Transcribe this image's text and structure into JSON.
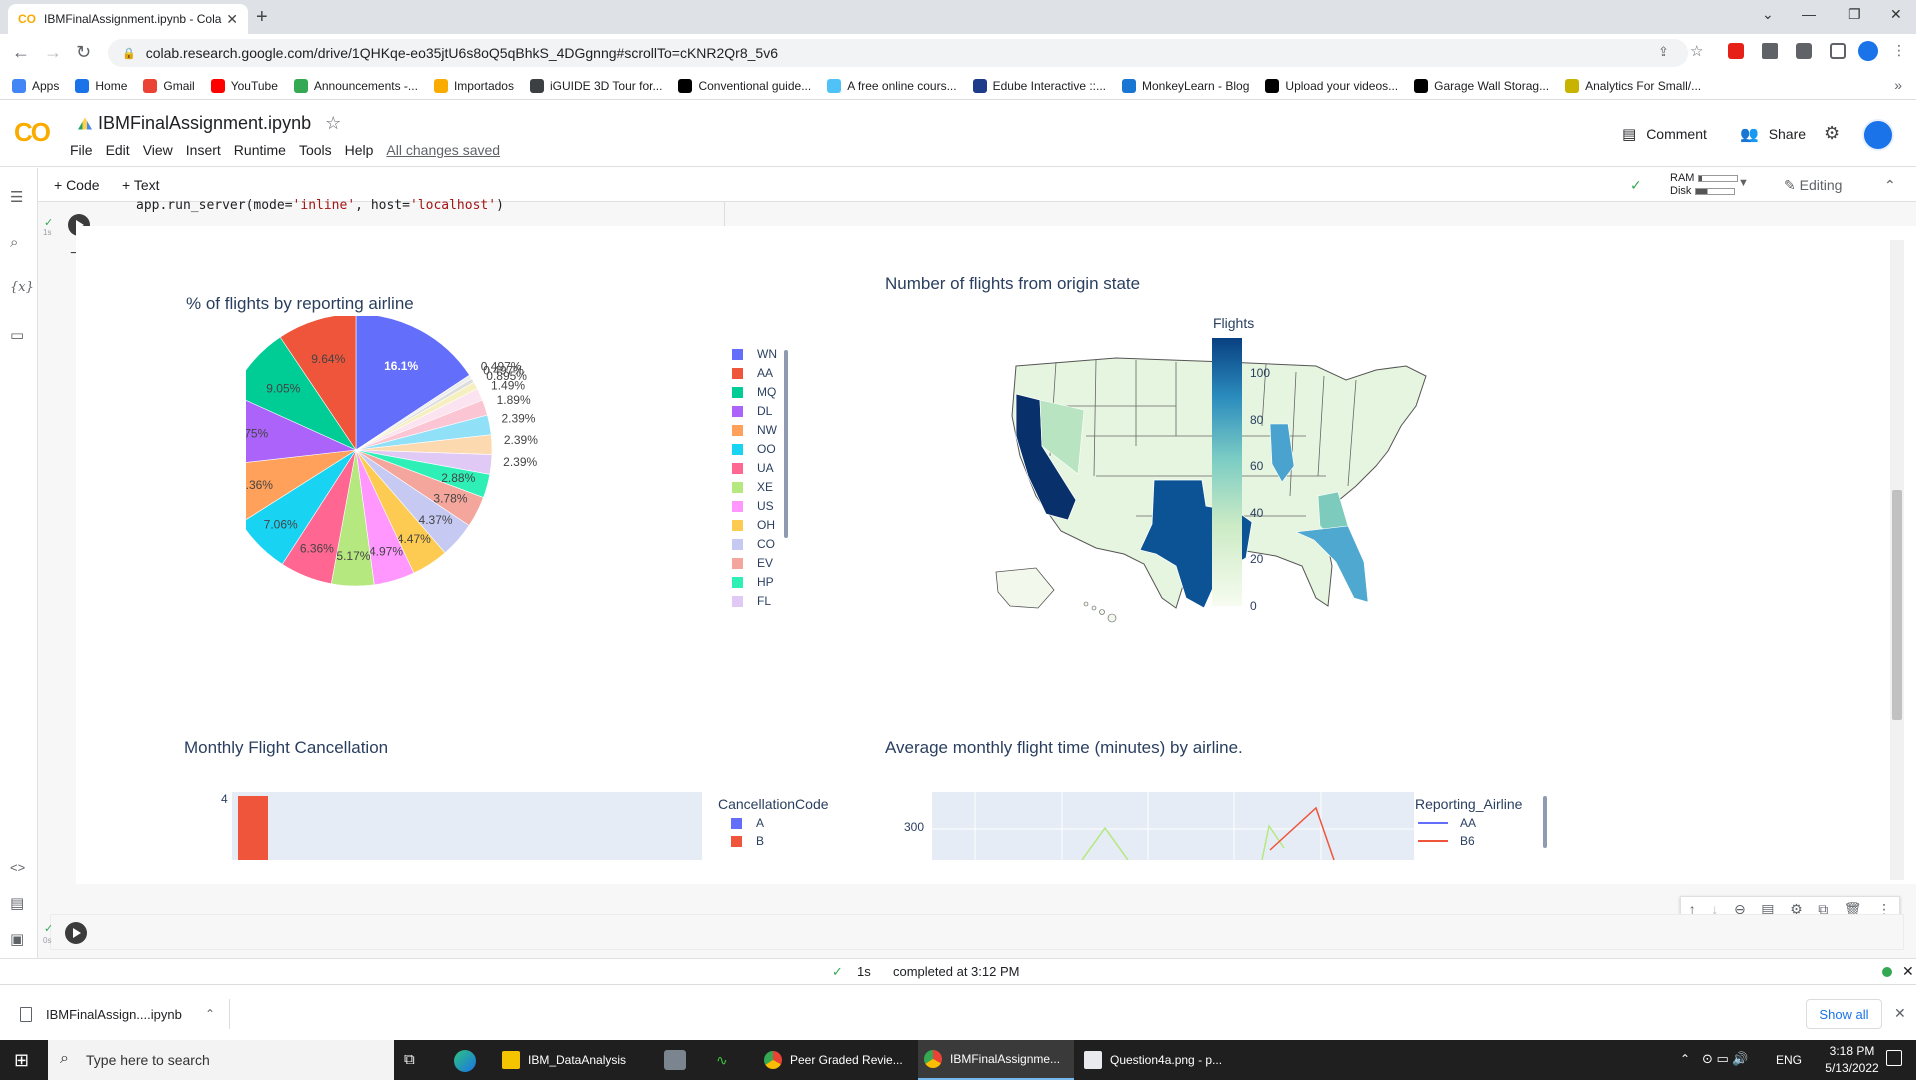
{
  "browser": {
    "tab_title": "IBMFinalAssignment.ipynb - Cola",
    "tab_logo": "CO",
    "url": "colab.research.google.com/drive/1QHKqe-eo35jtU6s8oQ5qBhkS_4DGgnng#scrollTo=cKNR2Qr8_5v6",
    "bookmarks": [
      "Apps",
      "Home",
      "Gmail",
      "YouTube",
      "Announcements -...",
      "Importados",
      "iGUIDE 3D Tour for...",
      "Conventional guide...",
      "A free online cours...",
      "Edube Interactive ::...",
      "MonkeyLearn - Blog",
      "Upload your videos...",
      "Garage Wall Storag...",
      "Analytics For Small/..."
    ],
    "bookmark_colors": [
      "#4285f4",
      "#1a73e8",
      "#ea4335",
      "#ff0000",
      "#34a853",
      "#f9ab00",
      "#3c4043",
      "#000000",
      "#4fc3f7",
      "#1e3a8a",
      "#1976d2",
      "#000000",
      "#000000",
      "#c8b400"
    ]
  },
  "colab": {
    "logo": "CO",
    "title": "IBMFinalAssignment.ipynb",
    "menu": [
      "File",
      "Edit",
      "View",
      "Insert",
      "Runtime",
      "Tools",
      "Help"
    ],
    "saved": "All changes saved",
    "comment": "Comment",
    "share": "Share",
    "toolbar": {
      "code": "+ Code",
      "text": "+ Text",
      "ram": "RAM",
      "disk": "Disk",
      "editing": "Editing"
    },
    "ram_fraction": 0.08,
    "disk_fraction": 0.3,
    "code_line_prefix": "app.run_server(mode=",
    "code_line_arg1": "'inline'",
    "code_line_mid": ", host=",
    "code_line_arg2": "'localhost'",
    "code_line_suffix": ")",
    "exec_time": "1s",
    "empty_cell_time": "0s"
  },
  "status": {
    "check": "✓",
    "time": "1s",
    "text": "completed at 3:12 PM"
  },
  "downloads": {
    "file": "IBMFinalAssign....ipynb",
    "show_all": "Show all"
  },
  "taskbar": {
    "search": "Type here to search",
    "apps": [
      "IBM_DataAnalysis",
      "Peer Graded Revie...",
      "IBMFinalAssignme...",
      "Question4a.png - p..."
    ],
    "lang": "ENG",
    "time": "3:18 PM",
    "date": "5/13/2022"
  },
  "chart_data": [
    {
      "type": "pie",
      "title": "% of flights by reporting airline",
      "slices": [
        {
          "label": "WN",
          "value": 16.1,
          "text": "16.1%",
          "color": "#636efa"
        },
        {
          "label": "0.497%",
          "value": 0.497,
          "text": "0.497%",
          "color": "#eeeeee"
        },
        {
          "label": "0.497%",
          "value": 0.497,
          "text": "0.497%",
          "color": "#dddddd"
        },
        {
          "label": "0.895%",
          "value": 0.895,
          "text": "0.895%",
          "color": "#f6f0c0"
        },
        {
          "label": "1.49%",
          "value": 1.49,
          "text": "1.49%",
          "color": "#fbe4ef"
        },
        {
          "label": "1.89%",
          "value": 1.89,
          "text": "1.89%",
          "color": "#fcc5d3"
        },
        {
          "label": "2.39%",
          "value": 2.39,
          "text": "2.39%",
          "color": "#90e0f8"
        },
        {
          "label": "2.39%",
          "value": 2.39,
          "text": "2.39%",
          "color": "#fdd9b0"
        },
        {
          "label": "FL",
          "value": 2.39,
          "text": "2.39%",
          "color": "#e0c9f5"
        },
        {
          "label": "HP",
          "value": 2.88,
          "text": "2.88%",
          "color": "#2ef0b7"
        },
        {
          "label": "EV",
          "value": 3.78,
          "text": "3.78%",
          "color": "#f4a69c"
        },
        {
          "label": "CO",
          "value": 4.37,
          "text": "4.37%",
          "color": "#c6caf3"
        },
        {
          "label": "OH",
          "value": 4.47,
          "text": "4.47%",
          "color": "#fecb52"
        },
        {
          "label": "US",
          "value": 4.97,
          "text": "4.97%",
          "color": "#ff97ff"
        },
        {
          "label": "XE",
          "value": 5.17,
          "text": "5.17%",
          "color": "#b6e880"
        },
        {
          "label": "UA",
          "value": 6.36,
          "text": "6.36%",
          "color": "#ff6692"
        },
        {
          "label": "OO",
          "value": 7.06,
          "text": "7.06%",
          "color": "#19d3f3"
        },
        {
          "label": "NW",
          "value": 7.36,
          "text": "7.36%",
          "color": "#ffa15a"
        },
        {
          "label": "DL",
          "value": 8.75,
          "text": "8.75%",
          "color": "#ab63fa"
        },
        {
          "label": "MQ",
          "value": 9.05,
          "text": "9.05%",
          "color": "#00cc96"
        },
        {
          "label": "AA",
          "value": 9.64,
          "text": "9.64%",
          "color": "#ef553b"
        }
      ],
      "legend": [
        {
          "label": "WN",
          "color": "#636efa"
        },
        {
          "label": "AA",
          "color": "#ef553b"
        },
        {
          "label": "MQ",
          "color": "#00cc96"
        },
        {
          "label": "DL",
          "color": "#ab63fa"
        },
        {
          "label": "NW",
          "color": "#ffa15a"
        },
        {
          "label": "OO",
          "color": "#19d3f3"
        },
        {
          "label": "UA",
          "color": "#ff6692"
        },
        {
          "label": "XE",
          "color": "#b6e880"
        },
        {
          "label": "US",
          "color": "#ff97ff"
        },
        {
          "label": "OH",
          "color": "#fecb52"
        },
        {
          "label": "CO",
          "color": "#c6caf3"
        },
        {
          "label": "EV",
          "color": "#f4a69c"
        },
        {
          "label": "HP",
          "color": "#2ef0b7"
        },
        {
          "label": "FL",
          "color": "#e0c9f5"
        }
      ]
    },
    {
      "type": "choropleth",
      "title": "Number of flights from origin state",
      "colorbar_title": "Flights",
      "colorbar_ticks": [
        0,
        20,
        40,
        60,
        80,
        100
      ],
      "range": [
        0,
        115
      ],
      "colorscale": [
        "#f7fcf0",
        "#ccebc5",
        "#7bccc4",
        "#2b8cbe",
        "#084081"
      ],
      "highlights": [
        {
          "state": "CA",
          "value": 115
        },
        {
          "state": "TX",
          "value": 100
        },
        {
          "state": "IL",
          "value": 70
        },
        {
          "state": "FL",
          "value": 58
        },
        {
          "state": "GA",
          "value": 45
        }
      ]
    },
    {
      "type": "bar",
      "title": "Monthly Flight Cancellation",
      "legend_title": "CancellationCode",
      "legend": [
        {
          "label": "A",
          "color": "#636efa"
        },
        {
          "label": "B",
          "color": "#ef553b"
        }
      ],
      "visible_tick": "4",
      "values": [
        {
          "code": "B",
          "value": 4
        }
      ]
    },
    {
      "type": "line",
      "title": "Average monthly flight time (minutes) by airline.",
      "legend_title": "Reporting_Airline",
      "legend": [
        {
          "label": "AA",
          "color": "#636efa"
        },
        {
          "label": "B6",
          "color": "#ef553b"
        }
      ],
      "visible_tick": "300"
    }
  ]
}
